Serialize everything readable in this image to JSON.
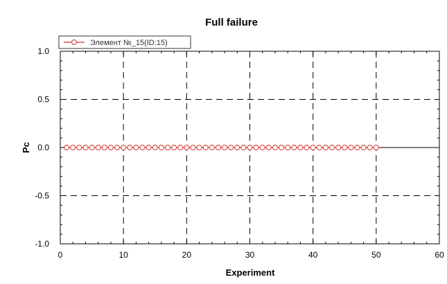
{
  "chart_data": {
    "type": "line",
    "title": "Full failure",
    "xlabel": "Experiment",
    "ylabel": "Pc",
    "xlim": [
      0,
      60
    ],
    "ylim": [
      -1.0,
      1.0
    ],
    "x_ticks": [
      0,
      10,
      20,
      30,
      40,
      50,
      60
    ],
    "y_ticks": [
      -1.0,
      -0.5,
      0.0,
      0.5,
      1.0
    ],
    "x_tick_labels": [
      "0",
      "10",
      "20",
      "30",
      "40",
      "50",
      "60"
    ],
    "y_tick_labels": [
      "-1.0",
      "-0.5",
      "0.0",
      "0.5",
      "1.0"
    ],
    "grid": true,
    "legend_position": "top-left",
    "series": [
      {
        "name": "Элемент №_15(ID:15)",
        "color": "#d9534f",
        "marker": "circle",
        "x": [
          1,
          2,
          3,
          4,
          5,
          6,
          7,
          8,
          9,
          10,
          11,
          12,
          13,
          14,
          15,
          16,
          17,
          18,
          19,
          20,
          21,
          22,
          23,
          24,
          25,
          26,
          27,
          28,
          29,
          30,
          31,
          32,
          33,
          34,
          35,
          36,
          37,
          38,
          39,
          40,
          41,
          42,
          43,
          44,
          45,
          46,
          47,
          48,
          49,
          50
        ],
        "values": [
          0,
          0,
          0,
          0,
          0,
          0,
          0,
          0,
          0,
          0,
          0,
          0,
          0,
          0,
          0,
          0,
          0,
          0,
          0,
          0,
          0,
          0,
          0,
          0,
          0,
          0,
          0,
          0,
          0,
          0,
          0,
          0,
          0,
          0,
          0,
          0,
          0,
          0,
          0,
          0,
          0,
          0,
          0,
          0,
          0,
          0,
          0,
          0,
          0,
          0
        ]
      }
    ],
    "zero_line_color": "#000000",
    "grid_color": "#000000"
  }
}
